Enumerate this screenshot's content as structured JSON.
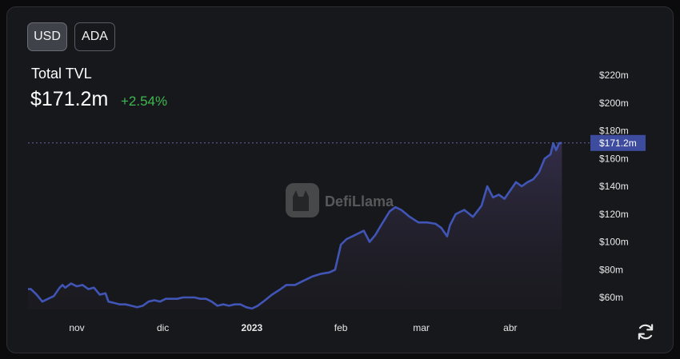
{
  "currency_toggle": {
    "options": [
      "USD",
      "ADA"
    ],
    "selected": "USD"
  },
  "metric": {
    "label": "Total TVL",
    "value": "$171.2m",
    "change": "+2.54%"
  },
  "watermark": "DefiLlama",
  "colors": {
    "line": "#4055b6",
    "positive": "#3fb950",
    "marker": "#3d4c9e"
  },
  "icons": {
    "refresh": "refresh-icon"
  },
  "chart_data": {
    "type": "area",
    "y_ticks": [
      "$60m",
      "$80m",
      "$100m",
      "$120m",
      "$140m",
      "$160m",
      "$180m",
      "$200m",
      "$220m"
    ],
    "y_tick_values": [
      60,
      80,
      100,
      120,
      140,
      160,
      180,
      200,
      220
    ],
    "x_ticks": [
      {
        "label": "nov",
        "date": "2022-11-01",
        "bold": false
      },
      {
        "label": "dic",
        "date": "2022-12-01",
        "bold": false
      },
      {
        "label": "2023",
        "date": "2023-01-01",
        "bold": true
      },
      {
        "label": "feb",
        "date": "2023-02-01",
        "bold": false
      },
      {
        "label": "mar",
        "date": "2023-03-01",
        "bold": false
      },
      {
        "label": "abr",
        "date": "2023-04-01",
        "bold": false
      }
    ],
    "current_marker": {
      "value": 171.2,
      "label": "$171.2m"
    },
    "x_range": [
      "2022-10-15",
      "2023-04-20"
    ],
    "y_range": [
      54,
      226
    ],
    "grid": false,
    "series": [
      {
        "points": [
          [
            "2022-10-15",
            66
          ],
          [
            "2022-10-16",
            66
          ],
          [
            "2022-10-18",
            62
          ],
          [
            "2022-10-20",
            57
          ],
          [
            "2022-10-22",
            59
          ],
          [
            "2022-10-24",
            61
          ],
          [
            "2022-10-26",
            67
          ],
          [
            "2022-10-27",
            69
          ],
          [
            "2022-10-28",
            67
          ],
          [
            "2022-10-30",
            70
          ],
          [
            "2022-11-01",
            68
          ],
          [
            "2022-11-03",
            69
          ],
          [
            "2022-11-05",
            66
          ],
          [
            "2022-11-07",
            67
          ],
          [
            "2022-11-09",
            62
          ],
          [
            "2022-11-11",
            63
          ],
          [
            "2022-11-12",
            57
          ],
          [
            "2022-11-14",
            56
          ],
          [
            "2022-11-16",
            55
          ],
          [
            "2022-11-18",
            55
          ],
          [
            "2022-11-20",
            54
          ],
          [
            "2022-11-22",
            53
          ],
          [
            "2022-11-24",
            54
          ],
          [
            "2022-11-26",
            57
          ],
          [
            "2022-11-28",
            58
          ],
          [
            "2022-11-30",
            57
          ],
          [
            "2022-12-02",
            59
          ],
          [
            "2022-12-04",
            59
          ],
          [
            "2022-12-06",
            59
          ],
          [
            "2022-12-08",
            60
          ],
          [
            "2022-12-10",
            60
          ],
          [
            "2022-12-12",
            60
          ],
          [
            "2022-12-14",
            59
          ],
          [
            "2022-12-16",
            59
          ],
          [
            "2022-12-18",
            57
          ],
          [
            "2022-12-20",
            54
          ],
          [
            "2022-12-22",
            55
          ],
          [
            "2022-12-24",
            54
          ],
          [
            "2022-12-26",
            55
          ],
          [
            "2022-12-28",
            55
          ],
          [
            "2022-12-30",
            53
          ],
          [
            "2023-01-01",
            52
          ],
          [
            "2023-01-03",
            54
          ],
          [
            "2023-01-05",
            57
          ],
          [
            "2023-01-08",
            62
          ],
          [
            "2023-01-11",
            66
          ],
          [
            "2023-01-13",
            69
          ],
          [
            "2023-01-16",
            69
          ],
          [
            "2023-01-19",
            72
          ],
          [
            "2023-01-22",
            75
          ],
          [
            "2023-01-25",
            77
          ],
          [
            "2023-01-28",
            78
          ],
          [
            "2023-01-30",
            80
          ],
          [
            "2023-02-01",
            98
          ],
          [
            "2023-02-03",
            102
          ],
          [
            "2023-02-05",
            104
          ],
          [
            "2023-02-07",
            106
          ],
          [
            "2023-02-09",
            108
          ],
          [
            "2023-02-11",
            100
          ],
          [
            "2023-02-13",
            105
          ],
          [
            "2023-02-15",
            112
          ],
          [
            "2023-02-18",
            122
          ],
          [
            "2023-02-20",
            125
          ],
          [
            "2023-02-22",
            123
          ],
          [
            "2023-02-25",
            118
          ],
          [
            "2023-02-28",
            114
          ],
          [
            "2023-03-03",
            114
          ],
          [
            "2023-03-06",
            113
          ],
          [
            "2023-03-08",
            110
          ],
          [
            "2023-03-10",
            104
          ],
          [
            "2023-03-11",
            112
          ],
          [
            "2023-03-13",
            120
          ],
          [
            "2023-03-16",
            123
          ],
          [
            "2023-03-19",
            118
          ],
          [
            "2023-03-22",
            126
          ],
          [
            "2023-03-24",
            140
          ],
          [
            "2023-03-26",
            132
          ],
          [
            "2023-03-28",
            134
          ],
          [
            "2023-03-30",
            131
          ],
          [
            "2023-04-01",
            137
          ],
          [
            "2023-04-03",
            143
          ],
          [
            "2023-04-05",
            140
          ],
          [
            "2023-04-07",
            143
          ],
          [
            "2023-04-09",
            145
          ],
          [
            "2023-04-11",
            150
          ],
          [
            "2023-04-13",
            160
          ],
          [
            "2023-04-15",
            163
          ],
          [
            "2023-04-16",
            171
          ],
          [
            "2023-04-17",
            166
          ],
          [
            "2023-04-18",
            171
          ],
          [
            "2023-04-19",
            171.2
          ]
        ]
      }
    ]
  }
}
